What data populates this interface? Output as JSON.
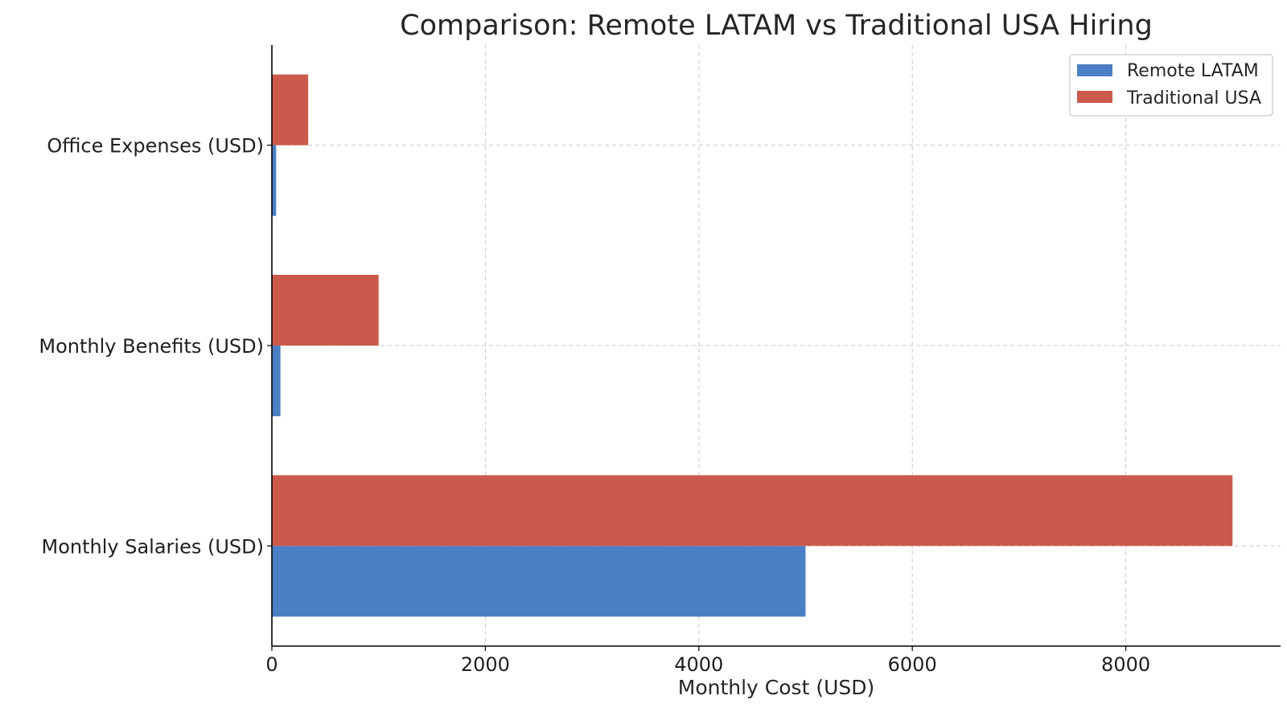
{
  "chart_data": {
    "type": "bar",
    "orientation": "horizontal",
    "title": "Comparison: Remote LATAM vs Traditional USA Hiring",
    "xlabel": "Monthly Cost (USD)",
    "ylabel": "",
    "xlim": [
      0,
      9450
    ],
    "xticks": [
      0,
      2000,
      4000,
      6000,
      8000
    ],
    "grid": true,
    "legend_position": "top-right",
    "categories": [
      "Monthly Salaries (USD)",
      "Monthly Benefits (USD)",
      "Office Expenses (USD)"
    ],
    "series": [
      {
        "name": "Remote LATAM",
        "color": "#4b7fc4",
        "values": [
          5000,
          80,
          40
        ]
      },
      {
        "name": "Traditional USA",
        "color": "#cb5a4c",
        "values": [
          9000,
          1000,
          340
        ]
      }
    ]
  }
}
